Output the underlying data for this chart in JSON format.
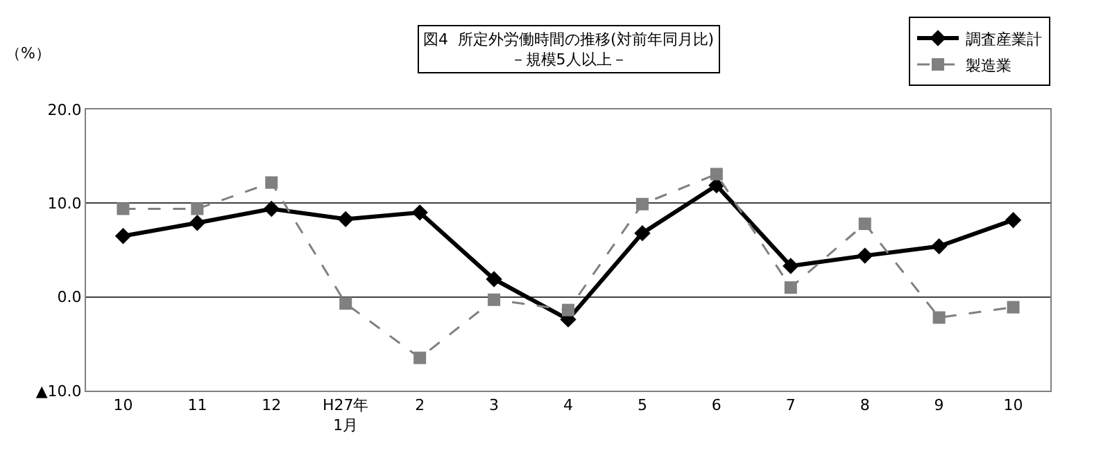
{
  "chart_data": {
    "type": "line",
    "title": "図4  所定外労働時間の推移(対前年同月比)",
    "subtitle": "－規模5人以上－",
    "ylabel": "（%）",
    "categories": [
      "10",
      "11",
      "12",
      "H27年\n1月",
      "2",
      "3",
      "4",
      "5",
      "6",
      "7",
      "8",
      "9",
      "10"
    ],
    "series": [
      {
        "name": "調査産業計",
        "color": "#000000",
        "marker": "diamond",
        "line_style": "solid",
        "values": [
          6.5,
          7.9,
          9.4,
          8.3,
          9.0,
          1.9,
          -2.4,
          6.8,
          11.9,
          3.3,
          4.4,
          5.4,
          8.2
        ]
      },
      {
        "name": "製造業",
        "color": "#808080",
        "marker": "square",
        "line_style": "dashed",
        "values": [
          9.4,
          9.4,
          12.2,
          -0.7,
          -6.5,
          -0.3,
          -1.4,
          9.9,
          13.1,
          1.0,
          7.8,
          -2.2,
          -1.1
        ]
      }
    ],
    "ylim": [
      -10,
      20
    ],
    "yticks": [
      {
        "value": -10,
        "label": "▲10.0"
      },
      {
        "value": 0,
        "label": "0.0"
      },
      {
        "value": 10,
        "label": "10.0"
      },
      {
        "value": 20,
        "label": "20.0"
      }
    ],
    "grid": "y",
    "legend": "top right"
  }
}
